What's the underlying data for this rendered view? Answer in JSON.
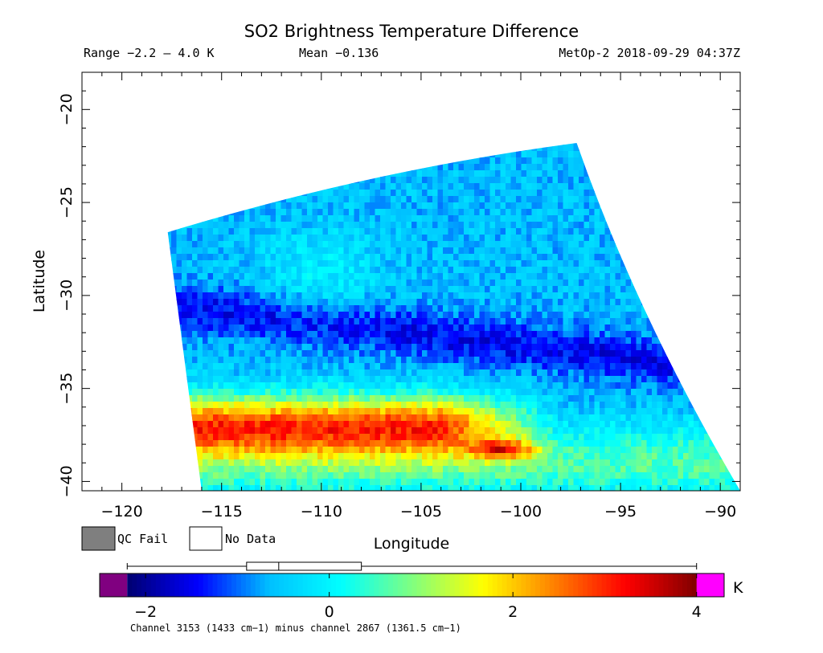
{
  "chart_data": {
    "type": "heatmap",
    "title": "SO2 Brightness Temperature Difference",
    "range_text": "Range −2.2 – 4.0 K",
    "mean_text": "Mean −0.136",
    "source_text": "MetOp-2 2018-09-29 04:37Z",
    "xlabel": "Longitude",
    "ylabel": "Latitude",
    "xlim": [
      -122,
      -89
    ],
    "ylim": [
      -40.5,
      -18
    ],
    "xticks": [
      -120,
      -115,
      -110,
      -105,
      -100,
      -95,
      -90
    ],
    "yticks": [
      -20,
      -25,
      -30,
      -35,
      -40
    ],
    "tick_minus": "−",
    "swath": {
      "top_left": [
        -117.7,
        -26.6
      ],
      "top_right": [
        -97.2,
        -21.8
      ],
      "bottom_left": [
        -116,
        -40.5
      ],
      "bottom_right": [
        -89,
        -40.5
      ]
    },
    "features": [
      {
        "name": "warm band",
        "lat_range": [
          -38.5,
          -35.5
        ],
        "value_range": [
          2.5,
          4.0
        ]
      },
      {
        "name": "cold band",
        "lat_range": [
          -33,
          -30
        ],
        "value_range": [
          -2.0,
          -1.2
        ]
      }
    ],
    "legend": {
      "qc_fail": "QC Fail",
      "no_data": "No Data",
      "qc_color": "#7f7f7f"
    },
    "colorbar": {
      "min": -2.5,
      "max": 4.3,
      "ticks": [
        -2,
        0,
        2,
        4
      ],
      "unit": "K",
      "under_color": "#800080",
      "over_color": "#ff00ff",
      "box": {
        "whisker_low": -2.2,
        "q1": -0.9,
        "median": -0.55,
        "q3": 0.35,
        "whisker_high": 4.0
      },
      "stops": [
        "#000070",
        "#0000ff",
        "#00c0ff",
        "#00ffff",
        "#80ff80",
        "#ffff00",
        "#ff8000",
        "#ff0000",
        "#800000"
      ]
    },
    "footnote": "Channel 3153 (1433 cm−1) minus channel 2867 (1361.5 cm−1)"
  }
}
